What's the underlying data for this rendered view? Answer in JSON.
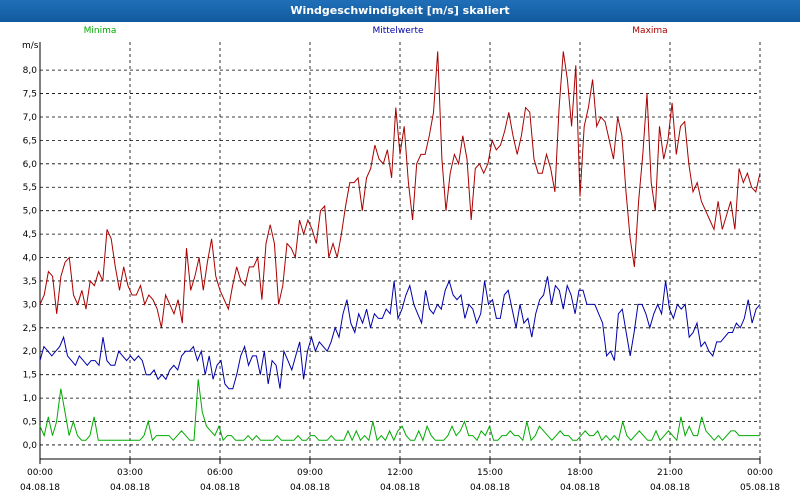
{
  "window": {
    "title": "Windgeschwindigkeit [m/s] skaliert"
  },
  "chart_data": {
    "type": "line",
    "title": "Windgeschwindigkeit [m/s] skaliert",
    "ylabel": "m/s",
    "xlabel": "",
    "ylim": [
      -0.3,
      8.6
    ],
    "xlim": [
      0,
      24
    ],
    "grid": true,
    "legend_position": "top",
    "x_ticks": [
      {
        "time": "00:00",
        "date": "04.08.18"
      },
      {
        "time": "03:00",
        "date": "04.08.18"
      },
      {
        "time": "06:00",
        "date": "04.08.18"
      },
      {
        "time": "09:00",
        "date": "04.08.18"
      },
      {
        "time": "12:00",
        "date": "04.08.18"
      },
      {
        "time": "15:00",
        "date": "04.08.18"
      },
      {
        "time": "18:00",
        "date": "04.08.18"
      },
      {
        "time": "21:00",
        "date": "04.08.18"
      },
      {
        "time": "00:00",
        "date": "05.08.18"
      }
    ],
    "y_ticks": [
      "0,0",
      "0,5",
      "1,0",
      "1,5",
      "2,0",
      "2,5",
      "3,0",
      "3,5",
      "4,0",
      "4,5",
      "5,0",
      "5,5",
      "6,0",
      "6,5",
      "7,0",
      "7,5",
      "8,0"
    ],
    "y_tick_values": [
      0,
      0.5,
      1,
      1.5,
      2,
      2.5,
      3,
      3.5,
      4,
      4.5,
      5,
      5.5,
      6,
      6.5,
      7,
      7.5,
      8
    ],
    "series": [
      {
        "name": "Minima",
        "color": "#00aa00",
        "values": [
          0.4,
          0.2,
          0.6,
          0.2,
          0.5,
          1.2,
          0.7,
          0.2,
          0.5,
          0.2,
          0.1,
          0.1,
          0.2,
          0.6,
          0.1,
          0.1,
          0.1,
          0.1,
          0.1,
          0.1,
          0.1,
          0.1,
          0.1,
          0.1,
          0.1,
          0.2,
          0.5,
          0.1,
          0.2,
          0.2,
          0.2,
          0.2,
          0.1,
          0.2,
          0.3,
          0.2,
          0.1,
          0.1,
          1.4,
          0.7,
          0.4,
          0.3,
          0.2,
          0.4,
          0.1,
          0.2,
          0.2,
          0.1,
          0.1,
          0.1,
          0.2,
          0.1,
          0.2,
          0.1,
          0.1,
          0.1,
          0.1,
          0.2,
          0.1,
          0.1,
          0.1,
          0.1,
          0.2,
          0.1,
          0.1,
          0.2,
          0.2,
          0.1,
          0.1,
          0.1,
          0.2,
          0.1,
          0.1,
          0.1,
          0.3,
          0.1,
          0.3,
          0.1,
          0.2,
          0.1,
          0.5,
          0.1,
          0.2,
          0.1,
          0.3,
          0.1,
          0.3,
          0.4,
          0.2,
          0.1,
          0.1,
          0.3,
          0.1,
          0.4,
          0.2,
          0.1,
          0.1,
          0.1,
          0.2,
          0.4,
          0.2,
          0.3,
          0.5,
          0.2,
          0.2,
          0.1,
          0.3,
          0.2,
          0.4,
          0.1,
          0.1,
          0.2,
          0.2,
          0.3,
          0.2,
          0.2,
          0.1,
          0.5,
          0.1,
          0.2,
          0.4,
          0.3,
          0.2,
          0.1,
          0.2,
          0.3,
          0.2,
          0.2,
          0.1,
          0.1,
          0.2,
          0.3,
          0.2,
          0.2,
          0.3,
          0.1,
          0.2,
          0.1,
          0.2,
          0.1,
          0.5,
          0.2,
          0.1,
          0.2,
          0.3,
          0.2,
          0.1,
          0.1,
          0.3,
          0.1,
          0.2,
          0.3,
          0.2,
          0.1,
          0.6,
          0.2,
          0.4,
          0.2,
          0.2,
          0.6,
          0.3,
          0.2,
          0.1,
          0.2,
          0.1,
          0.2,
          0.3,
          0.3,
          0.2,
          0.2,
          0.2,
          0.2,
          0.2,
          0.2
        ]
      },
      {
        "name": "Mittelwerte",
        "color": "#0000aa",
        "values": [
          1.8,
          2.1,
          2.0,
          1.9,
          2.0,
          2.1,
          2.3,
          1.9,
          1.8,
          1.7,
          1.9,
          1.8,
          1.7,
          1.8,
          1.8,
          1.7,
          2.3,
          1.8,
          1.7,
          1.7,
          2.0,
          1.9,
          1.8,
          1.9,
          1.8,
          1.9,
          1.8,
          1.5,
          1.5,
          1.6,
          1.4,
          1.5,
          1.4,
          1.6,
          1.7,
          1.6,
          1.9,
          2.0,
          2.0,
          2.1,
          1.8,
          2.0,
          1.5,
          1.9,
          1.4,
          1.7,
          1.8,
          1.3,
          1.2,
          1.2,
          1.5,
          1.9,
          2.1,
          1.7,
          1.9,
          1.9,
          1.5,
          2.0,
          1.3,
          1.8,
          1.7,
          1.2,
          2.0,
          1.8,
          1.6,
          1.9,
          2.2,
          1.4,
          2.0,
          2.3,
          2.0,
          2.2,
          2.1,
          2.0,
          2.2,
          2.5,
          2.3,
          2.8,
          3.1,
          2.6,
          2.4,
          2.8,
          2.6,
          2.9,
          2.5,
          2.8,
          2.7,
          2.7,
          2.9,
          2.8,
          3.5,
          2.7,
          2.9,
          3.2,
          3.4,
          3.0,
          2.8,
          2.6,
          3.3,
          2.9,
          2.8,
          3.0,
          2.9,
          3.3,
          3.5,
          3.2,
          3.1,
          3.2,
          2.7,
          3.0,
          2.9,
          2.6,
          2.8,
          3.5,
          3.0,
          3.1,
          2.7,
          2.7,
          3.2,
          3.3,
          2.9,
          2.5,
          3.0,
          2.6,
          2.7,
          2.3,
          2.8,
          3.1,
          3.2,
          3.6,
          3.0,
          3.4,
          3.3,
          2.9,
          3.4,
          3.2,
          2.8,
          3.3,
          3.3,
          3.0,
          3.0,
          3.0,
          2.8,
          2.6,
          1.9,
          2.0,
          1.8,
          2.8,
          2.9,
          2.4,
          1.9,
          2.4,
          3.0,
          3.0,
          2.8,
          2.5,
          2.8,
          3.0,
          2.8,
          3.5,
          2.9,
          2.7,
          3.0,
          2.9,
          3.0,
          2.3,
          2.4,
          2.6,
          2.1,
          2.2,
          2.0,
          1.9,
          2.2,
          2.2,
          2.3,
          2.4,
          2.4,
          2.6,
          2.5,
          2.7,
          3.1,
          2.6,
          2.9,
          3.0
        ]
      },
      {
        "name": "Maxima",
        "color": "#aa0000",
        "values": [
          3.0,
          3.2,
          3.7,
          3.6,
          2.8,
          3.6,
          3.9,
          4.0,
          3.2,
          3.0,
          3.3,
          2.9,
          3.5,
          3.4,
          3.7,
          3.5,
          4.6,
          4.4,
          3.8,
          3.3,
          3.8,
          3.4,
          3.2,
          3.2,
          3.4,
          3.0,
          3.2,
          3.1,
          2.9,
          2.5,
          3.2,
          3.0,
          2.8,
          3.1,
          2.6,
          4.2,
          3.3,
          3.6,
          4.0,
          3.3,
          3.9,
          4.4,
          3.6,
          3.3,
          3.1,
          2.9,
          3.4,
          3.8,
          3.5,
          3.4,
          3.8,
          3.8,
          4.0,
          3.1,
          4.3,
          4.7,
          4.3,
          3.0,
          3.4,
          4.3,
          4.2,
          4.0,
          4.8,
          4.5,
          4.8,
          4.6,
          4.3,
          5.0,
          5.1,
          4.0,
          4.3,
          4.0,
          4.5,
          5.1,
          5.6,
          5.6,
          5.7,
          5.0,
          5.7,
          5.9,
          6.4,
          6.1,
          6.0,
          6.3,
          5.7,
          7.2,
          6.2,
          6.8,
          5.6,
          4.8,
          6.0,
          6.2,
          6.2,
          6.6,
          7.1,
          8.4,
          6.1,
          5.0,
          5.8,
          6.2,
          6.0,
          6.6,
          6.1,
          4.8,
          5.9,
          6.0,
          5.8,
          6.0,
          6.5,
          6.3,
          6.4,
          6.7,
          7.1,
          6.6,
          6.2,
          6.6,
          7.2,
          7.1,
          6.1,
          5.8,
          5.8,
          6.2,
          5.9,
          5.4,
          7.2,
          8.4,
          7.8,
          6.8,
          8.1,
          5.3,
          6.8,
          7.2,
          7.8,
          6.8,
          7.0,
          6.9,
          6.5,
          6.1,
          7.0,
          6.6,
          5.4,
          4.4,
          3.8,
          5.2,
          6.2,
          7.5,
          5.6,
          5.0,
          6.8,
          6.1,
          6.5,
          7.3,
          6.2,
          6.8,
          6.9,
          6.0,
          5.4,
          5.6,
          5.2,
          5.0,
          4.8,
          4.6,
          5.2,
          4.6,
          4.9,
          5.2,
          4.6,
          5.9,
          5.6,
          5.8,
          5.5,
          5.4,
          5.8
        ]
      }
    ]
  }
}
